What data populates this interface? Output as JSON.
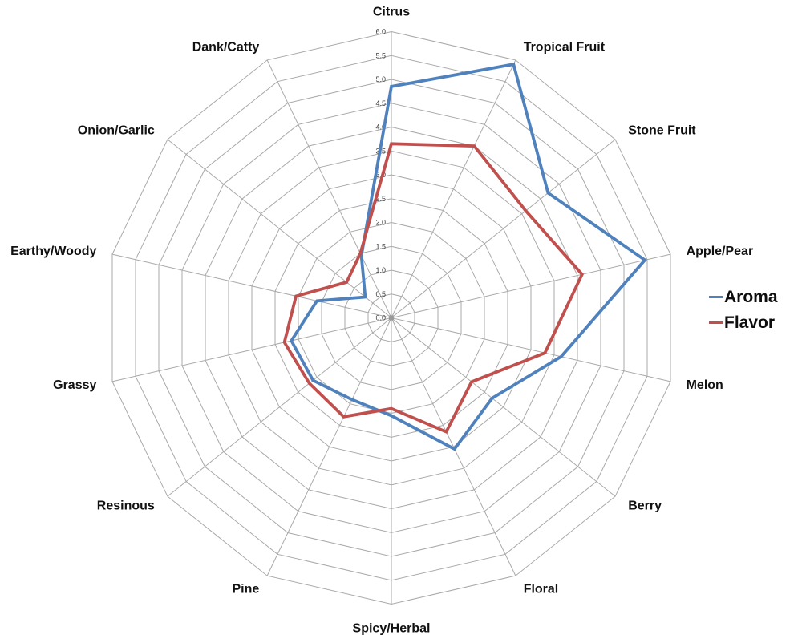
{
  "chart_data": {
    "type": "radar",
    "title": "",
    "categories": [
      "Citrus",
      "Tropical Fruit",
      "Stone Fruit",
      "Apple/Pear",
      "Melon",
      "Berry",
      "Floral",
      "Spicy/Herbal",
      "Pine",
      "Resinous",
      "Grassy",
      "Earthy/Woody",
      "Onion/Garlic",
      "Dank/Catty"
    ],
    "series": [
      {
        "name": "Aroma",
        "color": "#4f81bd",
        "values": [
          4.85,
          5.9,
          4.2,
          5.45,
          3.65,
          2.7,
          3.05,
          2.05,
          1.9,
          2.1,
          2.15,
          1.6,
          0.7,
          1.45
        ]
      },
      {
        "name": "Flavor",
        "color": "#c0504d",
        "values": [
          3.65,
          4.0,
          3.6,
          4.1,
          3.3,
          2.15,
          2.65,
          1.9,
          2.3,
          2.2,
          2.3,
          2.05,
          1.2,
          1.5
        ]
      }
    ],
    "radial_axis": {
      "min": 0,
      "max": 6,
      "step": 0.5,
      "tick_labels": [
        "0.0",
        "0.5",
        "1.0",
        "1.5",
        "2.0",
        "2.5",
        "3.0",
        "3.5",
        "4.0",
        "4.5",
        "5.0",
        "5.5",
        "6.0"
      ]
    },
    "grid": "polygon-web",
    "grid_color": "#a9a9a9",
    "background_color": "#ffffff",
    "legend_position": "right"
  }
}
